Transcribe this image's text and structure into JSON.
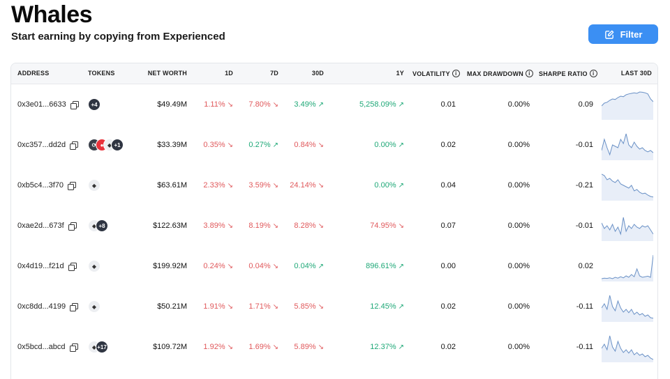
{
  "header": {
    "title": "Whales",
    "subtitle": "Start earning by copying from Experienced",
    "filter_label": "Filter"
  },
  "columns": {
    "address": "ADDRESS",
    "tokens": "TOKENS",
    "net_worth": "NET WORTH",
    "d1": "1D",
    "d7": "7D",
    "d30": "30D",
    "y1": "1Y",
    "volatility": "VOLATILITY",
    "max_drawdown": "MAX DRAWDOWN",
    "sharpe_ratio": "SHARPE RATIO",
    "last30": "LAST 30D"
  },
  "colors": {
    "accent": "#3b8ff3",
    "negative": "#e0585b",
    "positive": "#1ea877",
    "sparkline": "#6a91c6"
  },
  "rows": [
    {
      "address": "0x3e01...6633",
      "tokens": [
        {
          "icon": "more-badge",
          "label": "+4"
        }
      ],
      "net_worth": "$49.49M",
      "d1": {
        "v": "1.11%",
        "dir": "down"
      },
      "d7": {
        "v": "7.80%",
        "dir": "down"
      },
      "d30": {
        "v": "3.49%",
        "dir": "up"
      },
      "y1": {
        "v": "5,258.09%",
        "dir": "up"
      },
      "volatility": "0.01",
      "max_drawdown": "0.00%",
      "sharpe": "0.09",
      "spark": [
        0.55,
        0.45,
        0.42,
        0.35,
        0.3,
        0.32,
        0.25,
        0.2,
        0.22,
        0.15,
        0.12,
        0.1,
        0.08,
        0.1,
        0.05,
        0.06,
        0.08,
        0.12,
        0.3,
        0.4
      ]
    },
    {
      "address": "0xc357...dd2d",
      "tokens": [
        {
          "icon": "cycle-token-icon",
          "label": ""
        },
        {
          "icon": "red-token-icon",
          "label": ""
        },
        {
          "icon": "eth-icon",
          "label": ""
        },
        {
          "icon": "more-badge",
          "label": "+1"
        }
      ],
      "net_worth": "$33.39M",
      "d1": {
        "v": "0.35%",
        "dir": "down"
      },
      "d7": {
        "v": "0.27%",
        "dir": "up"
      },
      "d30": {
        "v": "0.84%",
        "dir": "down"
      },
      "y1": {
        "v": "0.00%",
        "dir": "up"
      },
      "volatility": "0.02",
      "max_drawdown": "0.00%",
      "sharpe": "-0.01",
      "spark": [
        0.7,
        0.3,
        0.6,
        0.85,
        0.5,
        0.55,
        0.6,
        0.3,
        0.45,
        0.1,
        0.5,
        0.6,
        0.4,
        0.55,
        0.65,
        0.6,
        0.7,
        0.75,
        0.7,
        0.78
      ]
    },
    {
      "address": "0xb5c4...3f70",
      "tokens": [
        {
          "icon": "eth-icon",
          "label": ""
        }
      ],
      "net_worth": "$63.61M",
      "d1": {
        "v": "2.33%",
        "dir": "down"
      },
      "d7": {
        "v": "3.59%",
        "dir": "down"
      },
      "d30": {
        "v": "24.14%",
        "dir": "down"
      },
      "y1": {
        "v": "0.00%",
        "dir": "up"
      },
      "volatility": "0.04",
      "max_drawdown": "0.00%",
      "sharpe": "-0.21",
      "spark": [
        0.1,
        0.15,
        0.3,
        0.25,
        0.35,
        0.4,
        0.3,
        0.45,
        0.5,
        0.55,
        0.6,
        0.5,
        0.7,
        0.65,
        0.75,
        0.8,
        0.78,
        0.85,
        0.9,
        0.92
      ]
    },
    {
      "address": "0xae2d...673f",
      "tokens": [
        {
          "icon": "eth-icon",
          "label": ""
        },
        {
          "icon": "more-badge",
          "label": "+8"
        }
      ],
      "net_worth": "$122.63M",
      "d1": {
        "v": "3.89%",
        "dir": "down"
      },
      "d7": {
        "v": "8.19%",
        "dir": "down"
      },
      "d30": {
        "v": "8.28%",
        "dir": "down"
      },
      "y1": {
        "v": "74.95%",
        "dir": "down"
      },
      "volatility": "0.07",
      "max_drawdown": "0.00%",
      "sharpe": "-0.01",
      "spark": [
        0.4,
        0.6,
        0.5,
        0.65,
        0.45,
        0.7,
        0.55,
        0.8,
        0.2,
        0.7,
        0.5,
        0.6,
        0.45,
        0.55,
        0.6,
        0.5,
        0.55,
        0.5,
        0.65,
        0.8
      ]
    },
    {
      "address": "0x4d19...f21d",
      "tokens": [
        {
          "icon": "eth-icon",
          "label": ""
        }
      ],
      "net_worth": "$199.92M",
      "d1": {
        "v": "0.24%",
        "dir": "down"
      },
      "d7": {
        "v": "0.04%",
        "dir": "down"
      },
      "d30": {
        "v": "0.04%",
        "dir": "up"
      },
      "y1": {
        "v": "896.61%",
        "dir": "up"
      },
      "volatility": "0.00",
      "max_drawdown": "0.00%",
      "sharpe": "0.02",
      "spark": [
        0.95,
        0.93,
        0.94,
        0.92,
        0.95,
        0.9,
        0.93,
        0.88,
        0.92,
        0.85,
        0.9,
        0.8,
        0.88,
        0.6,
        0.85,
        0.9,
        0.88,
        0.86,
        0.9,
        0.1
      ]
    },
    {
      "address": "0xc8dd...4199",
      "tokens": [
        {
          "icon": "eth-icon",
          "label": ""
        }
      ],
      "net_worth": "$50.21M",
      "d1": {
        "v": "1.91%",
        "dir": "down"
      },
      "d7": {
        "v": "1.71%",
        "dir": "down"
      },
      "d30": {
        "v": "5.85%",
        "dir": "down"
      },
      "y1": {
        "v": "12.45%",
        "dir": "up"
      },
      "volatility": "0.02",
      "max_drawdown": "0.00%",
      "sharpe": "-0.11",
      "spark": [
        0.55,
        0.4,
        0.6,
        0.1,
        0.5,
        0.65,
        0.3,
        0.55,
        0.7,
        0.6,
        0.72,
        0.6,
        0.78,
        0.7,
        0.8,
        0.75,
        0.85,
        0.8,
        0.9,
        0.92
      ]
    },
    {
      "address": "0x5bcd...abcd",
      "tokens": [
        {
          "icon": "eth-icon",
          "label": ""
        },
        {
          "icon": "more-badge",
          "label": "+17"
        }
      ],
      "net_worth": "$109.72M",
      "d1": {
        "v": "1.92%",
        "dir": "down"
      },
      "d7": {
        "v": "1.69%",
        "dir": "down"
      },
      "d30": {
        "v": "5.89%",
        "dir": "down"
      },
      "y1": {
        "v": "12.37%",
        "dir": "up"
      },
      "volatility": "0.02",
      "max_drawdown": "0.00%",
      "sharpe": "-0.11",
      "spark": [
        0.55,
        0.4,
        0.6,
        0.1,
        0.5,
        0.65,
        0.3,
        0.55,
        0.7,
        0.6,
        0.72,
        0.6,
        0.78,
        0.7,
        0.8,
        0.75,
        0.85,
        0.8,
        0.9,
        0.95
      ]
    }
  ]
}
